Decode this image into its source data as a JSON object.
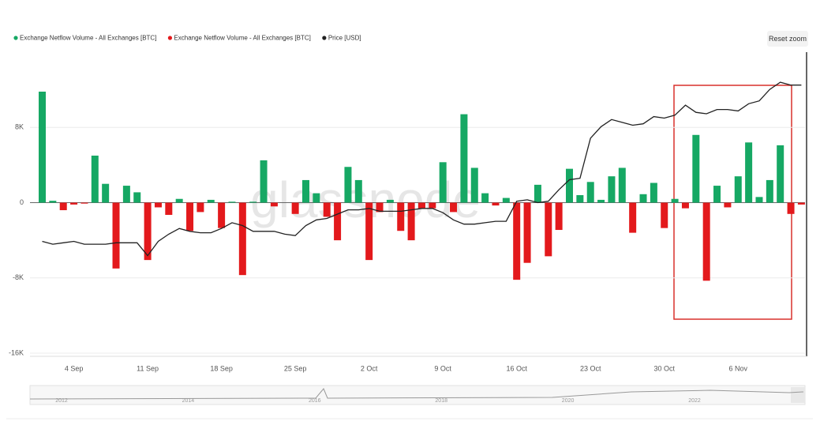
{
  "chart_data": {
    "type": "bar",
    "watermark": "glassnode",
    "reset_button": "Reset zoom",
    "categories": [
      null,
      null,
      null,
      "4 Sep",
      null,
      null,
      null,
      null,
      null,
      null,
      "11 Sep",
      null,
      null,
      null,
      null,
      null,
      null,
      "18 Sep",
      null,
      null,
      null,
      null,
      null,
      null,
      "25 Sep",
      null,
      null,
      null,
      null,
      null,
      null,
      "2 Oct",
      null,
      null,
      null,
      null,
      null,
      null,
      "9 Oct",
      null,
      null,
      null,
      null,
      null,
      null,
      "16 Oct",
      null,
      null,
      null,
      null,
      null,
      null,
      "23 Oct",
      null,
      null,
      null,
      null,
      null,
      null,
      "30 Oct",
      null,
      null,
      null,
      null,
      null,
      null,
      "6 Nov",
      null,
      null,
      null,
      null,
      null,
      null
    ],
    "ylim": [
      -16000,
      16000
    ],
    "yticks": [
      {
        "value": -16000,
        "label": "-16K"
      },
      {
        "value": -8000,
        "label": "-8K"
      },
      0,
      {
        "value": 8000,
        "label": "8K"
      }
    ],
    "y2lim": [
      18000,
      39000
    ],
    "grid": true,
    "series": [
      {
        "name": "Exchange Netflow Volume - All Exchanges [BTC]",
        "color": "#16a864",
        "values": [
          11800,
          200,
          null,
          null,
          null,
          5000,
          2000,
          null,
          1800,
          1100,
          null,
          null,
          null,
          400,
          null,
          null,
          300,
          null,
          100,
          null,
          100,
          4500,
          null,
          0,
          null,
          2400,
          1000,
          null,
          null,
          3800,
          2400,
          null,
          null,
          300,
          null,
          null,
          null,
          null,
          4300,
          null,
          9400,
          3700,
          1000,
          null,
          500,
          null,
          null,
          1900,
          null,
          null,
          3600,
          800,
          2200,
          300,
          2800,
          3700,
          null,
          900,
          2100,
          null,
          400,
          null,
          7200,
          null,
          1800,
          null,
          2800,
          6400,
          600,
          2400,
          6100,
          null,
          null
        ]
      },
      {
        "name": "Exchange Netflow Volume - All Exchanges [BTC]",
        "color": "#e3191c",
        "values": [
          null,
          null,
          -800,
          -200,
          -100,
          null,
          null,
          -7000,
          null,
          null,
          -6100,
          -500,
          -1300,
          null,
          -3000,
          -1000,
          null,
          -2700,
          null,
          -7700,
          null,
          null,
          -400,
          null,
          -1200,
          null,
          null,
          -1500,
          -4000,
          null,
          null,
          -6100,
          -1000,
          null,
          -3000,
          -4000,
          -600,
          -600,
          null,
          -1000,
          null,
          null,
          null,
          -300,
          null,
          -8200,
          -6400,
          null,
          -5700,
          -2900,
          null,
          null,
          null,
          null,
          null,
          null,
          -3200,
          null,
          null,
          -2700,
          null,
          -600,
          null,
          -8300,
          null,
          -500,
          null,
          null,
          null,
          null,
          null,
          -1200,
          -200
        ]
      },
      {
        "name": "Price [USD]",
        "color": "#222222",
        "type": "line",
        "axis": "y2",
        "values": [
          25800,
          25600,
          25700,
          25800,
          25600,
          25600,
          25600,
          25700,
          25700,
          25700,
          24800,
          25800,
          26300,
          26700,
          26500,
          26400,
          26400,
          26700,
          27100,
          26900,
          26500,
          26500,
          26500,
          26300,
          26200,
          26900,
          27300,
          27400,
          27700,
          28000,
          28000,
          28100,
          27900,
          27900,
          27900,
          28000,
          28100,
          28100,
          27800,
          27300,
          27000,
          27000,
          27100,
          27200,
          27200,
          28600,
          28700,
          28500,
          28600,
          29400,
          30100,
          30200,
          33000,
          33800,
          34300,
          34100,
          33900,
          34000,
          34500,
          34400,
          34600,
          35300,
          34800,
          34700,
          35000,
          35000,
          34900,
          35400,
          35600,
          36400,
          36900,
          36700,
          36700
        ]
      }
    ],
    "navigator": {
      "labels": [
        "2012",
        "2014",
        "2016",
        "2018",
        "2020",
        "2022"
      ]
    }
  }
}
